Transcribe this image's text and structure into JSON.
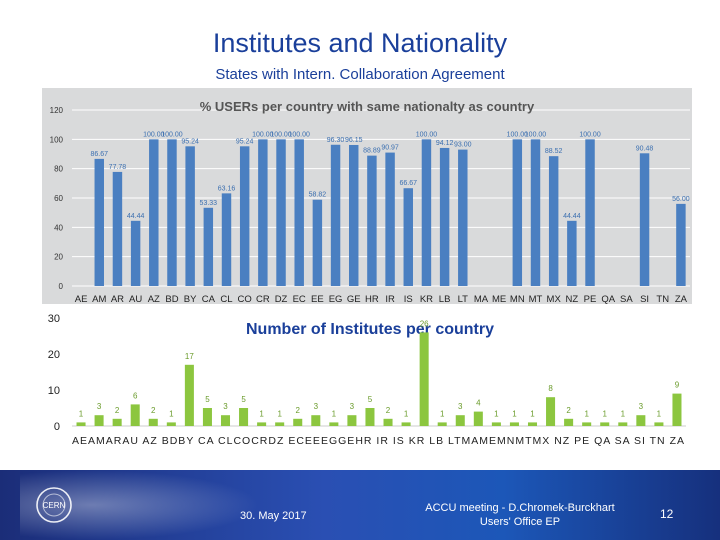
{
  "slide": {
    "title": "Institutes and Nationality",
    "subtitle": "States with Intern. Collaboration Agreement"
  },
  "footer": {
    "date": "30. May 2017",
    "meeting_line1": "ACCU meeting - D.Chromek-Burckhart",
    "meeting_line2": "Users' Office EP",
    "page_number": "12",
    "logo_text": "CERN"
  },
  "chart_data": [
    {
      "type": "bar",
      "title": "% USERs per country with same nationalty as country",
      "categories": [
        "AE",
        "AM",
        "AR",
        "AU",
        "AZ",
        "BD",
        "BY",
        "CA",
        "CL",
        "CO",
        "CR",
        "DZ",
        "EC",
        "EE",
        "EG",
        "GE",
        "HR",
        "IR",
        "IS",
        "KR",
        "LB",
        "LT",
        "MA",
        "ME",
        "MN",
        "MT",
        "MX",
        "NZ",
        "PE",
        "QA",
        "SA",
        "SI",
        "TN",
        "ZA"
      ],
      "values": [
        0,
        86.67,
        77.78,
        44.44,
        100,
        100,
        95.24,
        53.33,
        63.16,
        95.24,
        100,
        100,
        100,
        58.82,
        96.3,
        96.15,
        88.89,
        90.97,
        66.67,
        100,
        94.12,
        93,
        0,
        0,
        100,
        100,
        88.52,
        44.44,
        100,
        0,
        0,
        90.48,
        0,
        56
      ],
      "labels": [
        "",
        "86.67",
        "77.78",
        "44.44",
        "100.00",
        "100.00",
        "95.24",
        "53.33",
        "63.16",
        "95.24",
        "100.00",
        "100.00",
        "100.00",
        "58.82",
        "96.30",
        "96.15",
        "88.89",
        "90.97",
        "66.67",
        "100.00",
        "94.12",
        "93.00",
        "",
        "",
        "100.00",
        "100.00",
        "88.52",
        "44.44",
        "100.00",
        "",
        "",
        "90.48",
        "",
        "56.00"
      ],
      "ylim": [
        0,
        120
      ],
      "yticks": [
        "0",
        "20",
        "40",
        "60",
        "80",
        "100",
        "120"
      ],
      "bar_color": "#4a7fc1",
      "grid": true
    },
    {
      "type": "bar",
      "title": "Number of Institutes per country",
      "categories": [
        "AE",
        "AM",
        "AR",
        "AU",
        "AZ",
        "BD",
        "BY",
        "CA",
        "CL",
        "CO",
        "CR",
        "DZ",
        "EC",
        "EE",
        "EG",
        "GE",
        "HR",
        "IR",
        "IS",
        "KR",
        "LB",
        "LT",
        "MA",
        "ME",
        "MN",
        "MT",
        "MX",
        "NZ",
        "PE",
        "QA",
        "SA",
        "SI",
        "TN",
        "ZA"
      ],
      "axis_label_text": "AEAMARAU AZ BDBY CA CLCOCRDZ ECEEEGGEHR IR IS KR LB LTMAMEMNMTMX NZ PE QA SA SI TN ZA",
      "values": [
        1,
        3,
        2,
        6,
        2,
        1,
        17,
        5,
        3,
        5,
        1,
        1,
        2,
        3,
        1,
        3,
        5,
        2,
        1,
        26,
        1,
        3,
        4,
        1,
        1,
        1,
        8,
        2,
        1,
        1,
        1,
        3,
        1,
        9
      ],
      "ylim": [
        0,
        30
      ],
      "yticks": [
        "0",
        "10",
        "20",
        "30"
      ],
      "bar_color": "#8cc63f",
      "label_color": "#6a9b2b",
      "grid": false
    }
  ]
}
